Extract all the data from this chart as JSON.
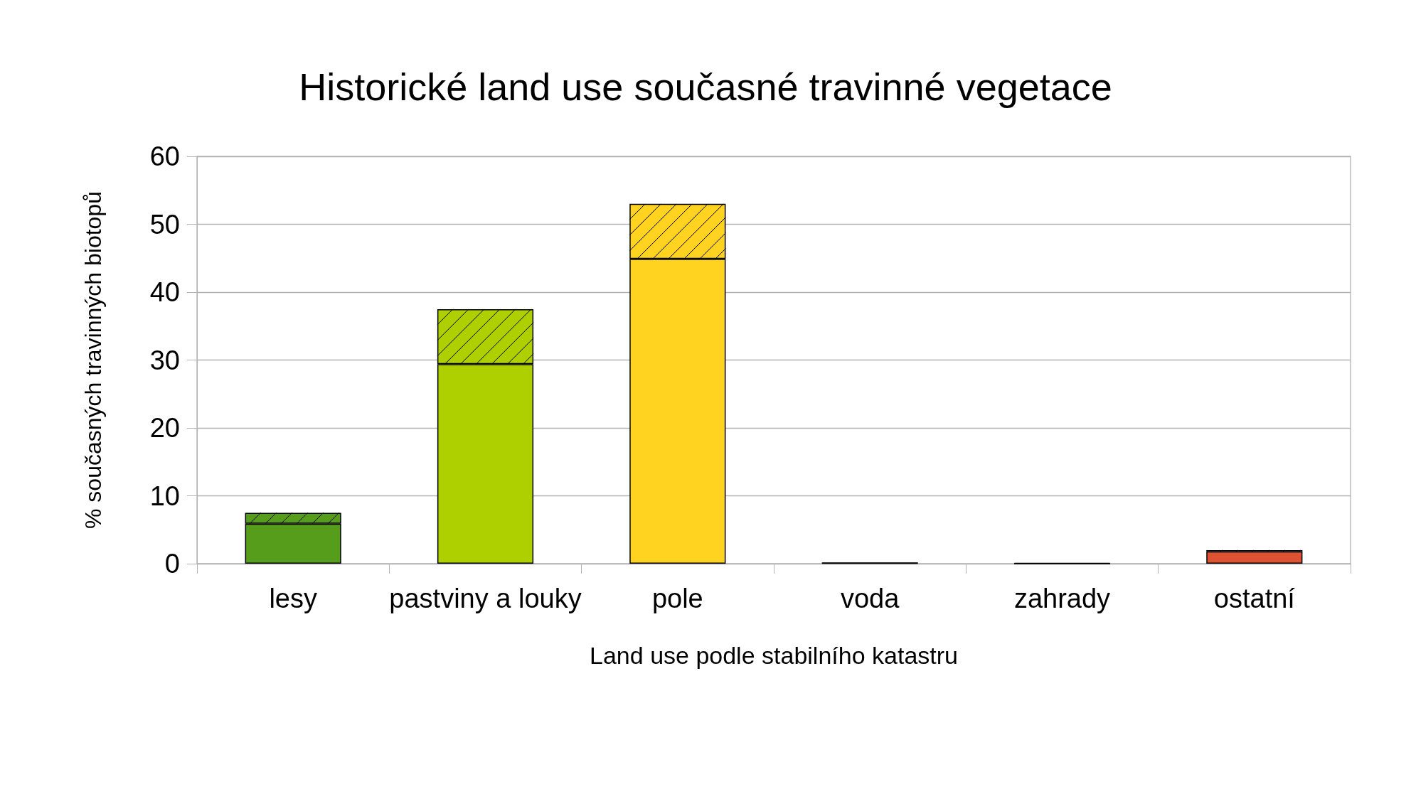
{
  "chart_data": {
    "type": "bar",
    "title": "Historické land use současné travinné vegetace",
    "xlabel": "Land use podle stabilního katastru",
    "ylabel": "% současných travinných biotopů",
    "categories": [
      "lesy",
      "pastviny a louky",
      "pole",
      "voda",
      "zahrady",
      "ostatní"
    ],
    "stacked": true,
    "series": [
      {
        "colors": [
          "#579d1c",
          "#aecf00",
          "#ffd320",
          "#000000",
          "#000000",
          "#dc5233"
        ],
        "values": [
          5.9,
          29.4,
          44.9,
          0.1,
          0,
          1.8
        ]
      },
      {
        "colors": [
          "#579d1c",
          "#aecf00",
          "#ffd320",
          "#000000",
          "#000000",
          "#dc5233"
        ],
        "values": [
          1.6,
          8.1,
          8.1,
          0,
          0.1,
          0.2
        ]
      }
    ],
    "ylim": [
      0,
      60
    ],
    "yticks": [
      0,
      10,
      20,
      30,
      40,
      50,
      60
    ],
    "grid": "y"
  }
}
